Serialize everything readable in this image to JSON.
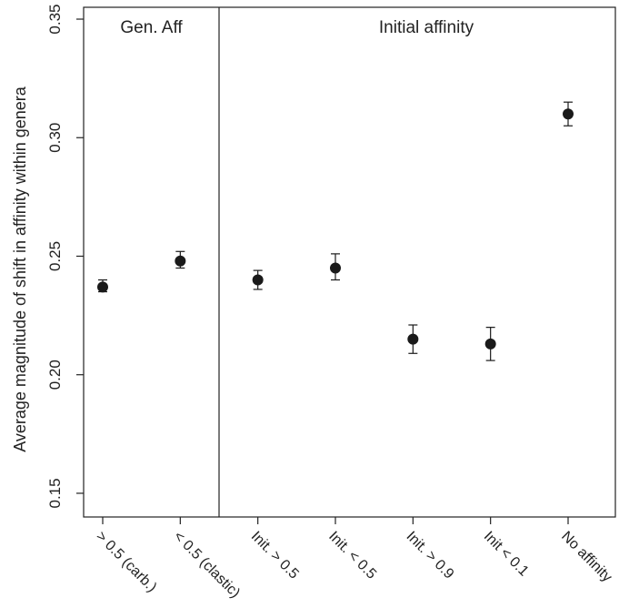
{
  "chart_data": {
    "type": "scatter",
    "ylabel": "Average magnitude of shift in affinity within genera",
    "ylim": [
      0.14,
      0.355
    ],
    "yticks": [
      0.15,
      0.2,
      0.25,
      0.3,
      0.35
    ],
    "ytick_labels": [
      "0.15",
      "0.20",
      "0.25",
      "0.30",
      "0.35"
    ],
    "panels": [
      {
        "label": "Gen. Aff"
      },
      {
        "label": "Initial affinity"
      }
    ],
    "categories": [
      "> 0.5 (carb.)",
      "< 0.5 (clastic)",
      "Init. > 0.5",
      "Init. < 0.5",
      "Init. > 0.9",
      "Init < 0.1",
      "No affinity"
    ],
    "values": [
      0.237,
      0.248,
      0.24,
      0.245,
      0.215,
      0.213,
      0.31
    ],
    "error_low": [
      0.235,
      0.245,
      0.236,
      0.24,
      0.209,
      0.206,
      0.305
    ],
    "error_high": [
      0.24,
      0.252,
      0.244,
      0.251,
      0.221,
      0.22,
      0.315
    ],
    "divider_after_category": 1,
    "grid": false,
    "colors": {
      "marker": "#1a1a1a",
      "axis": "#222222"
    }
  }
}
